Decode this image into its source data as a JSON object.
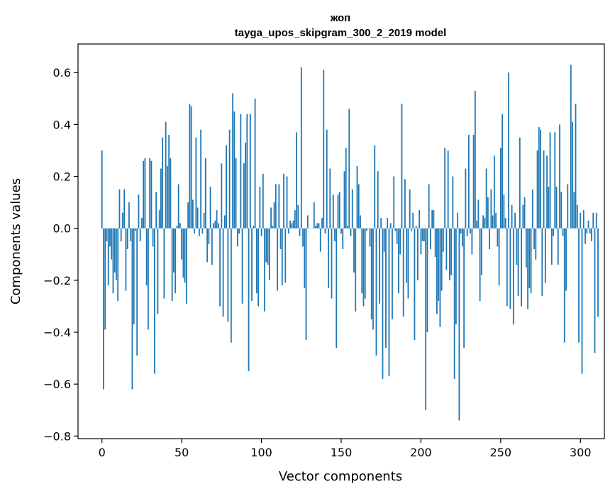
{
  "chart_data": {
    "type": "bar",
    "title": "жоп",
    "subtitle": "tayga_upos_skipgram_300_2_2019 model",
    "xlabel": "Vector components",
    "ylabel": "Components values",
    "xlim": [
      -15,
      315
    ],
    "ylim": [
      -0.81,
      0.71
    ],
    "xticks": [
      0,
      50,
      100,
      150,
      200,
      250,
      300
    ],
    "yticks": [
      -0.8,
      -0.6,
      -0.4,
      -0.2,
      0.0,
      0.2,
      0.4,
      0.6
    ],
    "xtick_labels": [
      "0",
      "50",
      "100",
      "150",
      "200",
      "250",
      "300"
    ],
    "ytick_labels": [
      "−0.8",
      "−0.6",
      "−0.4",
      "−0.2",
      "0.0",
      "0.2",
      "0.4",
      "0.6"
    ],
    "bar_color": "#1f77b4",
    "grid": false,
    "values": [
      0.3,
      -0.62,
      -0.39,
      -0.05,
      -0.22,
      -0.07,
      -0.12,
      -0.25,
      -0.17,
      -0.2,
      -0.28,
      0.15,
      -0.05,
      0.06,
      0.15,
      -0.24,
      -0.08,
      0.1,
      -0.05,
      -0.62,
      -0.37,
      -0.01,
      -0.49,
      0.13,
      -0.05,
      0.04,
      0.26,
      0.27,
      -0.22,
      -0.39,
      0.27,
      0.26,
      -0.07,
      -0.56,
      0.14,
      -0.33,
      0.07,
      0.23,
      0.35,
      -0.27,
      0.41,
      0.24,
      0.36,
      0.27,
      -0.28,
      -0.17,
      -0.25,
      0.01,
      0.17,
      0.02,
      -0.12,
      -0.19,
      -0.21,
      -0.29,
      0.1,
      0.48,
      0.47,
      0.11,
      -0.02,
      0.35,
      0.08,
      -0.03,
      0.38,
      -0.02,
      0.06,
      0.27,
      -0.13,
      -0.06,
      0.16,
      -0.14,
      0.02,
      0.03,
      0.07,
      0.02,
      -0.3,
      0.25,
      -0.34,
      0.05,
      0.32,
      -0.36,
      0.38,
      -0.44,
      0.52,
      0.45,
      0.27,
      -0.07,
      -0.02,
      0.44,
      -0.29,
      0.25,
      0.33,
      0.44,
      -0.55,
      0.44,
      -0.28,
      0.01,
      0.5,
      -0.25,
      -0.3,
      0.16,
      -0.03,
      0.21,
      -0.32,
      -0.13,
      -0.14,
      -0.2,
      0.08,
      0.01,
      0.1,
      0.17,
      -0.24,
      0.17,
      -0.08,
      -0.22,
      0.21,
      -0.21,
      0.2,
      -0.02,
      0.03,
      0.02,
      0.03,
      0.07,
      0.37,
      0.09,
      -0.03,
      0.62,
      -0.07,
      -0.23,
      -0.43,
      0.05,
      0.0,
      0.0,
      0.0,
      0.1,
      0.01,
      0.02,
      0.02,
      -0.09,
      0.04,
      0.61,
      -0.02,
      0.38,
      -0.23,
      0.23,
      -0.27,
      0.13,
      -0.05,
      -0.46,
      0.13,
      0.14,
      -0.02,
      -0.08,
      0.22,
      0.31,
      0.01,
      0.46,
      -0.03,
      0.15,
      -0.17,
      -0.32,
      0.24,
      0.17,
      0.05,
      -0.25,
      -0.3,
      -0.27,
      -0.01,
      0.0,
      -0.07,
      -0.35,
      -0.39,
      0.32,
      -0.49,
      0.22,
      -0.29,
      0.04,
      -0.58,
      -0.09,
      -0.46,
      0.04,
      -0.57,
      0.02,
      -0.35,
      0.2,
      -0.01,
      -0.06,
      -0.25,
      -0.1,
      0.48,
      -0.34,
      0.19,
      -0.21,
      -0.27,
      0.15,
      -0.01,
      0.06,
      -0.43,
      0.01,
      -0.2,
      0.07,
      -0.1,
      -0.05,
      -0.05,
      -0.7,
      -0.4,
      0.17,
      -0.08,
      0.07,
      0.07,
      -0.11,
      -0.33,
      -0.28,
      -0.38,
      -0.24,
      -0.09,
      0.31,
      -0.16,
      0.3,
      -0.2,
      -0.18,
      0.2,
      -0.58,
      -0.37,
      0.06,
      -0.74,
      -0.02,
      -0.07,
      -0.46,
      0.23,
      -0.03,
      0.36,
      -0.02,
      -0.1,
      0.36,
      0.53,
      0.03,
      0.11,
      -0.28,
      -0.18,
      0.05,
      0.04,
      0.23,
      0.12,
      -0.08,
      0.15,
      0.05,
      0.28,
      0.06,
      -0.07,
      -0.22,
      0.31,
      0.44,
      0.13,
      0.04,
      -0.3,
      0.6,
      -0.31,
      0.09,
      -0.37,
      0.06,
      -0.14,
      -0.26,
      0.35,
      -0.3,
      0.09,
      0.12,
      -0.15,
      -0.31,
      -0.23,
      -0.25,
      0.15,
      -0.08,
      -0.12,
      0.3,
      0.39,
      0.38,
      -0.26,
      0.3,
      -0.21,
      0.28,
      0.16,
      0.37,
      -0.14,
      -0.03,
      0.37,
      0.16,
      -0.14,
      0.4,
      0.14,
      -0.03,
      -0.44,
      -0.24,
      0.17,
      0.0,
      0.63,
      0.41,
      0.14,
      0.48,
      0.09,
      -0.44,
      0.06,
      -0.56,
      0.07,
      -0.06,
      -0.02,
      0.03,
      -0.02,
      -0.05,
      0.06,
      -0.48,
      0.06,
      -0.34
    ]
  }
}
